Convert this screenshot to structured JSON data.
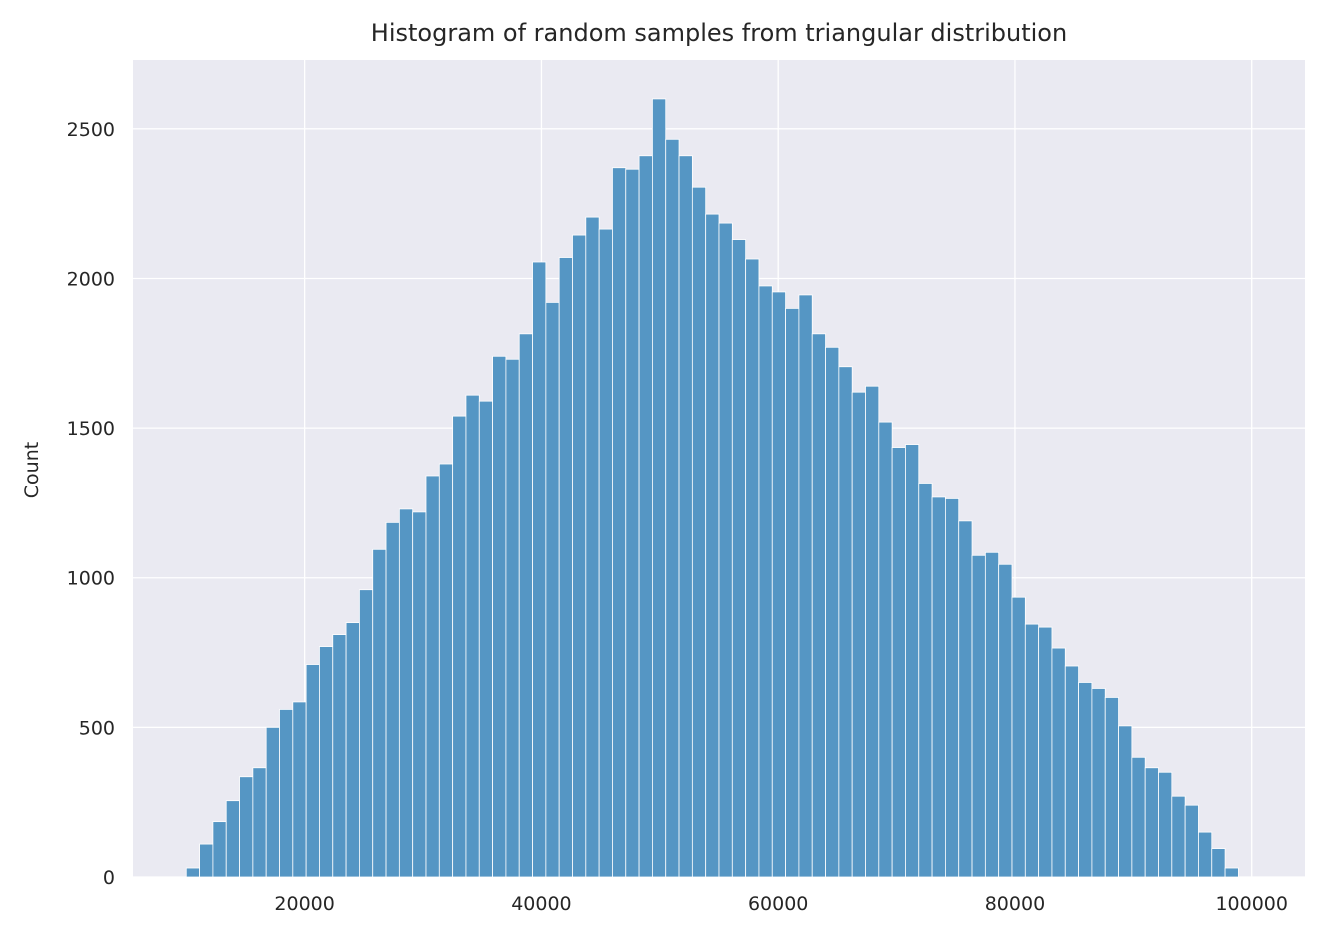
{
  "chart_data": {
    "type": "bar",
    "title": "Histogram of random samples from triangular distribution",
    "xlabel": "",
    "ylabel": "Count",
    "xlim": [
      5500,
      104500
    ],
    "ylim": [
      0,
      2730
    ],
    "grid": true,
    "x_ticks": [
      20000,
      40000,
      60000,
      80000,
      100000
    ],
    "y_ticks": [
      0,
      500,
      1000,
      1500,
      2000,
      2500
    ],
    "bin_start": 10000,
    "bin_width": 1125,
    "bin_counts": [
      30,
      110,
      185,
      255,
      335,
      365,
      500,
      560,
      585,
      710,
      770,
      810,
      850,
      960,
      1095,
      1185,
      1230,
      1220,
      1340,
      1380,
      1540,
      1610,
      1590,
      1740,
      1730,
      1815,
      2055,
      1920,
      2070,
      2145,
      2205,
      2165,
      2370,
      2365,
      2410,
      2600,
      2465,
      2410,
      2305,
      2215,
      2185,
      2130,
      2065,
      1975,
      1955,
      1900,
      1945,
      1815,
      1770,
      1705,
      1620,
      1640,
      1520,
      1435,
      1445,
      1315,
      1270,
      1265,
      1190,
      1075,
      1085,
      1045,
      935,
      845,
      835,
      765,
      705,
      650,
      630,
      600,
      505,
      400,
      365,
      350,
      270,
      240,
      150,
      95,
      30
    ]
  },
  "colors": {
    "bar_fill": "#5596c4",
    "bar_edge": "#ffffff",
    "plot_bg": "#eaeaf2",
    "grid": "#ffffff",
    "text": "#262626"
  }
}
